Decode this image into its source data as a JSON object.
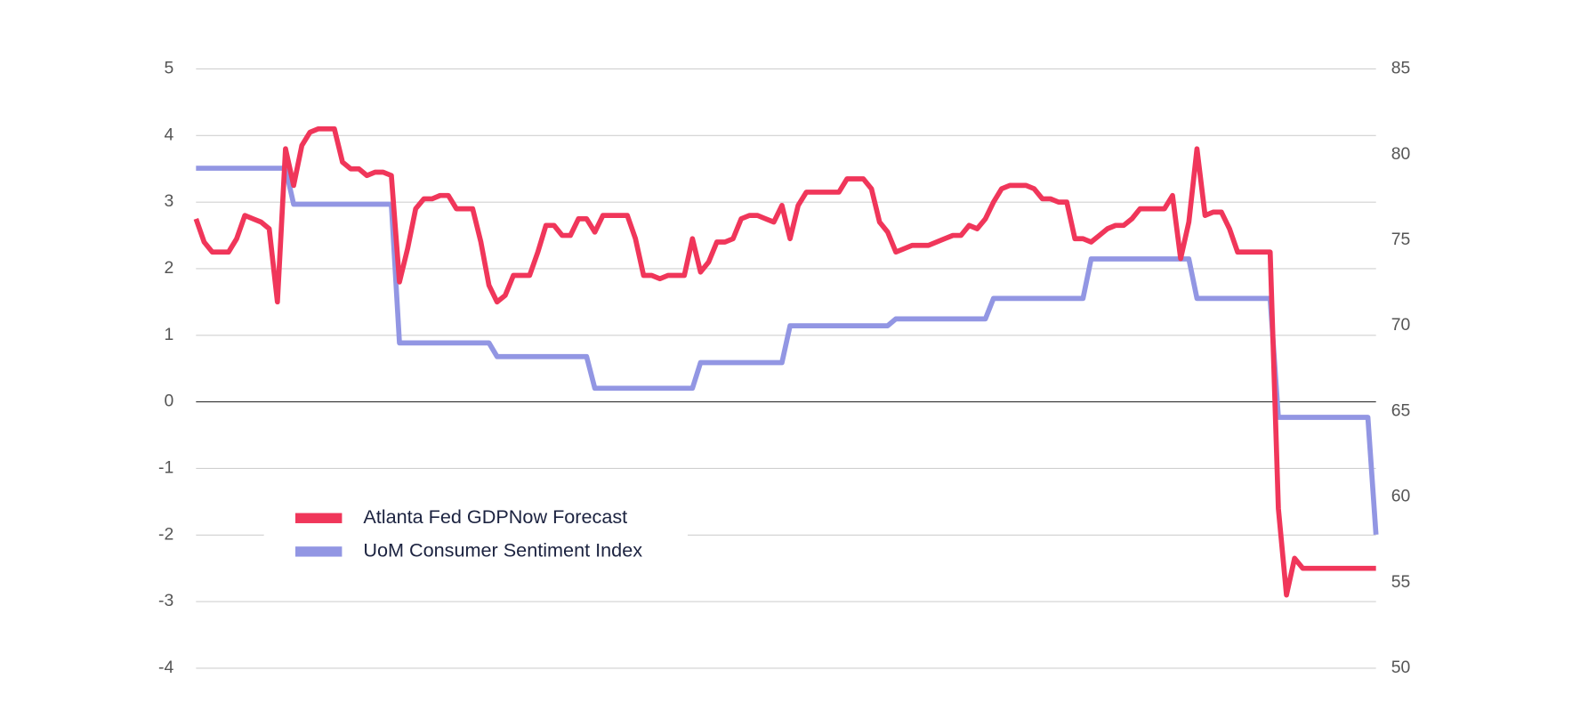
{
  "chart_data": {
    "type": "line",
    "series": [
      {
        "name": "Atlanta Fed GDPNow Forecast",
        "color": "#f0365a",
        "axis": "y",
        "values": [
          2.75,
          2.4,
          2.25,
          2.25,
          2.25,
          2.45,
          2.8,
          2.75,
          2.7,
          2.6,
          1.5,
          3.8,
          3.25,
          3.85,
          4.05,
          4.1,
          4.1,
          4.1,
          3.6,
          3.5,
          3.5,
          3.4,
          3.45,
          3.45,
          3.4,
          1.8,
          2.3,
          2.9,
          3.05,
          3.05,
          3.1,
          3.1,
          2.9,
          2.9,
          2.9,
          2.4,
          1.75,
          1.5,
          1.6,
          1.9,
          1.9,
          1.9,
          2.25,
          2.65,
          2.65,
          2.5,
          2.5,
          2.75,
          2.75,
          2.55,
          2.8,
          2.8,
          2.8,
          2.8,
          2.45,
          1.9,
          1.9,
          1.85,
          1.9,
          1.9,
          1.9,
          2.45,
          1.95,
          2.1,
          2.4,
          2.4,
          2.45,
          2.75,
          2.8,
          2.8,
          2.75,
          2.7,
          2.95,
          2.45,
          2.95,
          3.15,
          3.15,
          3.15,
          3.15,
          3.15,
          3.35,
          3.35,
          3.35,
          3.2,
          2.7,
          2.55,
          2.25,
          2.3,
          2.35,
          2.35,
          2.35,
          2.4,
          2.45,
          2.5,
          2.5,
          2.65,
          2.6,
          2.75,
          3.0,
          3.2,
          3.25,
          3.25,
          3.25,
          3.2,
          3.05,
          3.05,
          3.0,
          3.0,
          2.45,
          2.45,
          2.4,
          2.5,
          2.6,
          2.65,
          2.65,
          2.75,
          2.9,
          2.9,
          2.9,
          2.9,
          3.1,
          2.15,
          2.7,
          3.8,
          2.8,
          2.85,
          2.85,
          2.6,
          2.25,
          2.25,
          2.25,
          2.25,
          2.25,
          -1.6,
          -2.9,
          -2.35,
          -2.5,
          -2.5,
          -2.5,
          -2.5,
          -2.5,
          -2.5,
          -2.5,
          -2.5,
          -2.5,
          -2.5
        ]
      },
      {
        "name": "UoM Consumer Sentiment Index",
        "color": "#9296e3",
        "axis": "y2",
        "values": [
          79.2,
          79.2,
          79.2,
          79.2,
          79.2,
          79.2,
          79.2,
          79.2,
          79.2,
          79.2,
          79.2,
          79.2,
          77.1,
          77.1,
          77.1,
          77.1,
          77.1,
          77.1,
          77.1,
          77.1,
          77.1,
          77.1,
          77.1,
          77.1,
          77.1,
          69.0,
          69.0,
          69.0,
          69.0,
          69.0,
          69.0,
          69.0,
          69.0,
          69.0,
          69.0,
          69.0,
          69.0,
          68.2,
          68.2,
          68.2,
          68.2,
          68.2,
          68.2,
          68.2,
          68.2,
          68.2,
          68.2,
          68.2,
          68.2,
          66.35,
          66.35,
          66.35,
          66.35,
          66.35,
          66.35,
          66.35,
          66.35,
          66.35,
          66.35,
          66.35,
          66.35,
          66.35,
          67.85,
          67.85,
          67.85,
          67.85,
          67.85,
          67.85,
          67.85,
          67.85,
          67.85,
          67.85,
          67.85,
          70.0,
          70.0,
          70.0,
          70.0,
          70.0,
          70.0,
          70.0,
          70.0,
          70.0,
          70.0,
          70.0,
          70.0,
          70.0,
          70.4,
          70.4,
          70.4,
          70.4,
          70.4,
          70.4,
          70.4,
          70.4,
          70.4,
          70.4,
          70.4,
          70.4,
          71.6,
          71.6,
          71.6,
          71.6,
          71.6,
          71.6,
          71.6,
          71.6,
          71.6,
          71.6,
          71.6,
          71.6,
          73.9,
          73.9,
          73.9,
          73.9,
          73.9,
          73.9,
          73.9,
          73.9,
          73.9,
          73.9,
          73.9,
          73.9,
          73.9,
          71.6,
          71.6,
          71.6,
          71.6,
          71.6,
          71.6,
          71.6,
          71.6,
          71.6,
          71.6,
          64.65,
          64.65,
          64.65,
          64.65,
          64.65,
          64.65,
          64.65,
          64.65,
          64.65,
          64.65,
          64.65,
          64.65,
          57.8
        ]
      }
    ],
    "ylim": [
      -4,
      5
    ],
    "yticks": [
      -4,
      -3,
      -2,
      -1,
      0,
      1,
      2,
      3,
      4,
      5
    ],
    "y2lim": [
      50,
      85
    ],
    "y2ticks": [
      50,
      55,
      60,
      65,
      70,
      75,
      80,
      85
    ],
    "grid": true,
    "legend": "lower left"
  }
}
